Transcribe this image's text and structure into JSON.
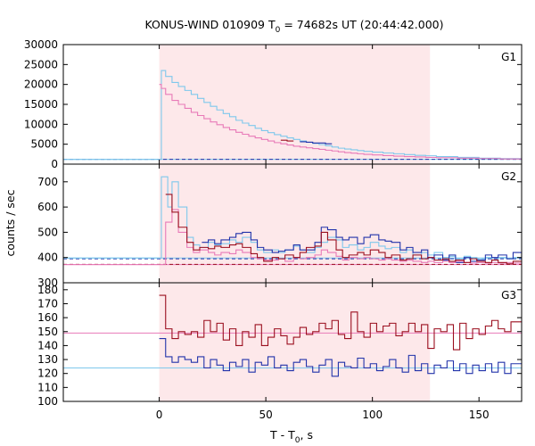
{
  "chart_data": {
    "type": "line",
    "title": {
      "pre": "KONUS-WIND 010909 T",
      "sub": "0",
      "post": " = 74682s UT (20:44:42.000)"
    },
    "xlabel": {
      "pre": "T - T",
      "sub": "0",
      "post": ", s"
    },
    "ylabel": "counts / sec",
    "xlim": [
      -45,
      170
    ],
    "x_ticks": [
      0,
      50,
      100,
      150
    ],
    "highlight_interval": [
      0,
      127
    ],
    "colors": {
      "highlight": "#fde8ea",
      "light_blue": "#7ec8ec",
      "dark_blue": "#2233aa",
      "pink": "#e87ab8",
      "dark_red": "#9b0f1f"
    },
    "panels": [
      {
        "label": "G1",
        "ylim": [
          0,
          30000
        ],
        "y_ticks": [
          0,
          5000,
          10000,
          15000,
          20000,
          25000,
          30000
        ],
        "background_levels": [
          {
            "value": 1200,
            "color": "light_blue",
            "style": "solid"
          },
          {
            "value": 1200,
            "color": "dark_blue",
            "style": "dashed"
          }
        ],
        "series": [
          {
            "color": "light_blue",
            "type": "step",
            "x": [
              -45,
              0,
              1,
              3,
              6,
              9,
              12,
              15,
              18,
              21,
              24,
              27,
              30,
              33,
              36,
              39,
              42,
              45,
              48,
              51,
              54,
              57,
              60,
              63,
              66,
              69,
              72,
              75,
              78,
              81,
              84,
              87,
              90,
              93,
              96,
              100,
              105,
              110,
              115,
              120,
              125,
              130,
              140,
              150,
              160,
              170
            ],
            "y": [
              1200,
              1200,
              23500,
              22000,
              20500,
              19500,
              18500,
              17500,
              16500,
              15500,
              14500,
              13600,
              12700,
              11900,
              11000,
              10300,
              9700,
              9000,
              8400,
              7900,
              7400,
              7000,
              6600,
              6200,
              5800,
              5500,
              5200,
              4900,
              4600,
              4300,
              4000,
              3800,
              3600,
              3400,
              3200,
              3000,
              2800,
              2600,
              2400,
              2200,
              2100,
              1900,
              1700,
              1500,
              1400,
              1300
            ]
          },
          {
            "color": "pink",
            "type": "step",
            "x": [
              0,
              1,
              3,
              6,
              9,
              12,
              15,
              18,
              21,
              24,
              27,
              30,
              33,
              36,
              39,
              42,
              45,
              48,
              51,
              54,
              57,
              60,
              63,
              66,
              69,
              72,
              75,
              78,
              81,
              84,
              87,
              90,
              93,
              96,
              100,
              105,
              110,
              115,
              120,
              125,
              130,
              140,
              150,
              160,
              170
            ],
            "y": [
              20000,
              19000,
              17500,
              16000,
              15000,
              14000,
              13000,
              12200,
              11400,
              10600,
              9900,
              9200,
              8600,
              8000,
              7500,
              7000,
              6600,
              6200,
              5800,
              5400,
              5100,
              4800,
              4500,
              4300,
              4100,
              3900,
              3700,
              3500,
              3300,
              3100,
              2900,
              2750,
              2600,
              2450,
              2300,
              2150,
              2000,
              1900,
              1800,
              1700,
              1600,
              1500,
              1400,
              1300,
              1300
            ]
          },
          {
            "color": "dark_red",
            "type": "step",
            "x": [
              57,
              60,
              63
            ],
            "y": [
              6000,
              5800,
              5800
            ]
          },
          {
            "color": "dark_blue",
            "type": "step",
            "x": [
              66,
              69,
              72,
              75,
              78,
              81
            ],
            "y": [
              5600,
              5500,
              5300,
              5300,
              5100,
              5100
            ]
          }
        ]
      },
      {
        "label": "G2",
        "ylim": [
          300,
          770
        ],
        "y_ticks": [
          300,
          400,
          500,
          600,
          700
        ],
        "background_levels": [
          {
            "value": 398,
            "color": "light_blue",
            "style": "solid"
          },
          {
            "value": 372,
            "color": "pink",
            "style": "solid"
          },
          {
            "value": 395,
            "color": "dark_blue",
            "style": "dashed"
          },
          {
            "value": 373,
            "color": "dark_red",
            "style": "dashed"
          }
        ],
        "series": [
          {
            "color": "light_blue",
            "type": "step",
            "x": [
              -45,
              0,
              1,
              4,
              6,
              9,
              13,
              16,
              19,
              23,
              26,
              29,
              33,
              36,
              39,
              43,
              46,
              49,
              53,
              56,
              59,
              63,
              66,
              69,
              73,
              76,
              79,
              83,
              86,
              89,
              93,
              96,
              99,
              103,
              106,
              109,
              113,
              116,
              119,
              123,
              126,
              129,
              133,
              136,
              139,
              143,
              146,
              149,
              153,
              156,
              159,
              163,
              166,
              170
            ],
            "y": [
              398,
              398,
              720,
              600,
              700,
              600,
              480,
              450,
              440,
              460,
              450,
              455,
              470,
              460,
              480,
              460,
              430,
              420,
              430,
              420,
              430,
              445,
              430,
              420,
              440,
              460,
              480,
              470,
              440,
              450,
              430,
              440,
              460,
              445,
              435,
              440,
              420,
              430,
              410,
              420,
              410,
              420,
              400,
              405,
              395,
              405,
              400,
              395,
              400,
              390,
              400,
              395,
              400,
              400
            ]
          },
          {
            "color": "dark_blue",
            "type": "step",
            "x": [
              20,
              23,
              26,
              29,
              33,
              36,
              39,
              43,
              46,
              49,
              53,
              56,
              59,
              63,
              66,
              69,
              73,
              76,
              79,
              83,
              86,
              89,
              93,
              96,
              99,
              103,
              106,
              109,
              113,
              116,
              119,
              123,
              126,
              129,
              133,
              136,
              139,
              143,
              146,
              149,
              153,
              156,
              159,
              163,
              166,
              170
            ],
            "y": [
              460,
              470,
              455,
              470,
              480,
              495,
              500,
              470,
              440,
              430,
              420,
              425,
              430,
              450,
              430,
              430,
              460,
              520,
              510,
              480,
              470,
              480,
              455,
              480,
              490,
              470,
              465,
              460,
              430,
              440,
              420,
              430,
              400,
              410,
              390,
              410,
              380,
              400,
              385,
              390,
              410,
              400,
              410,
              395,
              420,
              400
            ]
          },
          {
            "color": "pink",
            "type": "step",
            "x": [
              -45,
              0,
              3,
              6,
              9,
              13,
              16,
              19,
              23,
              26,
              29,
              33,
              36,
              39,
              43,
              46,
              49,
              53,
              56,
              59,
              63,
              66,
              69,
              73,
              76,
              79,
              83,
              86,
              89,
              93,
              96,
              99,
              103,
              106,
              109,
              113,
              116,
              119,
              123,
              126,
              129,
              133,
              136,
              139,
              143,
              146,
              149,
              153,
              156,
              159,
              163,
              166,
              170
            ],
            "y": [
              372,
              372,
              540,
              590,
              500,
              440,
              420,
              430,
              420,
              410,
              420,
              415,
              430,
              420,
              400,
              395,
              390,
              390,
              395,
              385,
              400,
              395,
              400,
              410,
              430,
              420,
              405,
              390,
              400,
              395,
              400,
              395,
              390,
              395,
              390,
              385,
              390,
              385,
              380,
              385,
              380,
              385,
              380,
              385,
              380,
              378,
              380,
              378,
              380,
              378,
              380,
              378,
              378
            ]
          },
          {
            "color": "dark_red",
            "type": "step",
            "x": [
              3,
              6,
              9,
              13,
              16,
              19,
              23,
              26,
              29,
              33,
              36,
              39,
              43,
              46,
              49,
              53,
              56,
              59,
              63,
              66,
              69,
              73,
              76,
              79,
              83,
              86,
              89,
              93,
              96,
              99,
              103,
              106,
              109,
              113,
              116,
              119,
              123,
              126,
              129,
              133,
              136,
              139,
              143,
              146,
              149,
              153,
              156,
              159,
              163,
              166,
              170
            ],
            "y": [
              650,
              580,
              520,
              460,
              430,
              440,
              435,
              445,
              440,
              450,
              455,
              440,
              415,
              400,
              385,
              400,
              395,
              410,
              400,
              420,
              440,
              445,
              500,
              470,
              430,
              400,
              410,
              420,
              410,
              430,
              420,
              400,
              410,
              390,
              395,
              410,
              395,
              400,
              390,
              395,
              385,
              390,
              380,
              395,
              385,
              380,
              390,
              380,
              375,
              385,
              385
            ]
          }
        ]
      },
      {
        "label": "G3",
        "ylim": [
          100,
          185
        ],
        "y_ticks": [
          100,
          110,
          120,
          130,
          140,
          150,
          160,
          170,
          180
        ],
        "background_levels": [
          {
            "value": 149,
            "color": "pink",
            "style": "solid"
          },
          {
            "value": 124,
            "color": "light_blue",
            "style": "solid"
          }
        ],
        "series": [
          {
            "color": "dark_red",
            "type": "step",
            "x": [
              0,
              3,
              6,
              9,
              12,
              15,
              18,
              21,
              24,
              27,
              30,
              33,
              36,
              39,
              42,
              45,
              48,
              51,
              54,
              57,
              60,
              63,
              66,
              69,
              72,
              75,
              78,
              81,
              84,
              87,
              90,
              93,
              96,
              99,
              102,
              105,
              108,
              111,
              114,
              117,
              120,
              123,
              126,
              129,
              132,
              135,
              138,
              141,
              144,
              147,
              150,
              153,
              156,
              159,
              162,
              165,
              170
            ],
            "y": [
              176,
              152,
              145,
              150,
              148,
              150,
              146,
              158,
              150,
              156,
              144,
              152,
              140,
              150,
              146,
              155,
              140,
              146,
              152,
              147,
              141,
              146,
              153,
              148,
              150,
              156,
              152,
              158,
              148,
              145,
              164,
              150,
              146,
              156,
              150,
              154,
              156,
              147,
              150,
              156,
              150,
              155,
              138,
              152,
              150,
              155,
              137,
              156,
              145,
              152,
              148,
              154,
              158,
              152,
              150,
              157,
              157
            ]
          },
          {
            "color": "dark_blue",
            "type": "step",
            "x": [
              0,
              3,
              6,
              9,
              12,
              15,
              18,
              21,
              24,
              27,
              30,
              33,
              36,
              39,
              42,
              45,
              48,
              51,
              54,
              57,
              60,
              63,
              66,
              69,
              72,
              75,
              78,
              81,
              84,
              87,
              90,
              93,
              96,
              99,
              102,
              105,
              108,
              111,
              114,
              117,
              120,
              123,
              126,
              129,
              132,
              135,
              138,
              141,
              144,
              147,
              150,
              153,
              156,
              159,
              162,
              165,
              170
            ],
            "y": [
              145,
              132,
              128,
              132,
              130,
              128,
              132,
              124,
              130,
              126,
              122,
              128,
              125,
              130,
              121,
              128,
              126,
              132,
              124,
              126,
              122,
              128,
              130,
              125,
              121,
              126,
              130,
              118,
              128,
              125,
              124,
              131,
              124,
              127,
              122,
              125,
              130,
              124,
              121,
              133,
              122,
              127,
              120,
              126,
              124,
              129,
              122,
              127,
              120,
              126,
              122,
              127,
              121,
              128,
              120,
              127,
              127
            ]
          }
        ]
      }
    ]
  }
}
